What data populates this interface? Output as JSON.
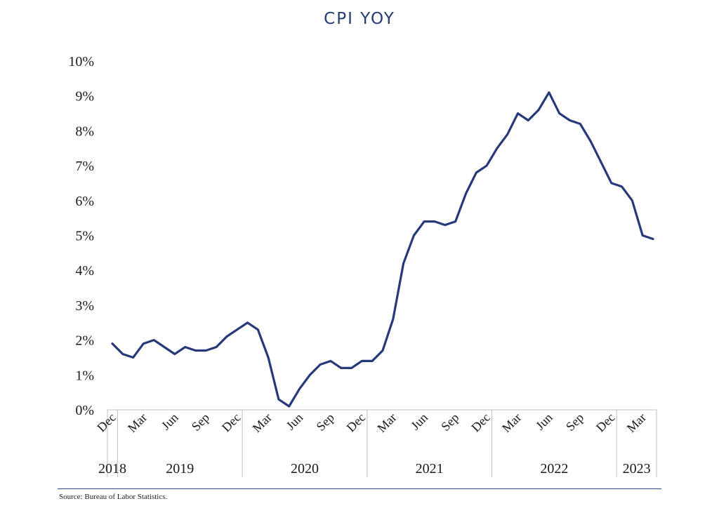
{
  "title": "CPI YOY",
  "source": "Source: Bureau of Labor Statistics.",
  "colors": {
    "line": "#27397a",
    "title": "#233a73",
    "axis": "#bfbfbf",
    "rule": "#2f4a86"
  },
  "chart_data": {
    "type": "line",
    "title": "CPI YOY",
    "xlabel": "",
    "ylabel": "",
    "ylim": [
      0,
      10
    ],
    "yticks": [
      "0%",
      "1%",
      "2%",
      "3%",
      "4%",
      "5%",
      "6%",
      "7%",
      "8%",
      "9%",
      "10%"
    ],
    "grid": false,
    "x": [
      "2018-12",
      "2019-01",
      "2019-02",
      "2019-03",
      "2019-04",
      "2019-05",
      "2019-06",
      "2019-07",
      "2019-08",
      "2019-09",
      "2019-10",
      "2019-11",
      "2019-12",
      "2020-01",
      "2020-02",
      "2020-03",
      "2020-04",
      "2020-05",
      "2020-06",
      "2020-07",
      "2020-08",
      "2020-09",
      "2020-10",
      "2020-11",
      "2020-12",
      "2021-01",
      "2021-02",
      "2021-03",
      "2021-04",
      "2021-05",
      "2021-06",
      "2021-07",
      "2021-08",
      "2021-09",
      "2021-10",
      "2021-11",
      "2021-12",
      "2022-01",
      "2022-02",
      "2022-03",
      "2022-04",
      "2022-05",
      "2022-06",
      "2022-07",
      "2022-08",
      "2022-09",
      "2022-10",
      "2022-11",
      "2022-12",
      "2023-01",
      "2023-02",
      "2023-03",
      "2023-04"
    ],
    "series": [
      {
        "values": [
          1.9,
          1.6,
          1.5,
          1.9,
          2.0,
          1.8,
          1.6,
          1.8,
          1.7,
          1.7,
          1.8,
          2.1,
          2.3,
          2.5,
          2.3,
          1.5,
          0.3,
          0.1,
          0.6,
          1.0,
          1.3,
          1.4,
          1.2,
          1.2,
          1.4,
          1.4,
          1.7,
          2.6,
          4.2,
          5.0,
          5.4,
          5.4,
          5.3,
          5.4,
          6.2,
          6.8,
          7.0,
          7.5,
          7.9,
          8.5,
          8.3,
          8.6,
          9.1,
          8.5,
          8.3,
          8.2,
          7.7,
          7.1,
          6.5,
          6.4,
          6.0,
          5.0,
          4.9
        ]
      }
    ],
    "month_ticks": [
      {
        "label": "Dec",
        "index": 0
      },
      {
        "label": "Mar",
        "index": 3
      },
      {
        "label": "Jun",
        "index": 6
      },
      {
        "label": "Sep",
        "index": 9
      },
      {
        "label": "Dec",
        "index": 12
      },
      {
        "label": "Mar",
        "index": 15
      },
      {
        "label": "Jun",
        "index": 18
      },
      {
        "label": "Sep",
        "index": 21
      },
      {
        "label": "Dec",
        "index": 24
      },
      {
        "label": "Mar",
        "index": 27
      },
      {
        "label": "Jun",
        "index": 30
      },
      {
        "label": "Sep",
        "index": 33
      },
      {
        "label": "Dec",
        "index": 36
      },
      {
        "label": "Mar",
        "index": 39
      },
      {
        "label": "Jun",
        "index": 42
      },
      {
        "label": "Sep",
        "index": 45
      },
      {
        "label": "Dec",
        "index": 48
      },
      {
        "label": "Mar",
        "index": 51
      }
    ],
    "year_groups": [
      {
        "label": "2018",
        "start": 0,
        "end": 0
      },
      {
        "label": "2019",
        "start": 1,
        "end": 12
      },
      {
        "label": "2020",
        "start": 13,
        "end": 24
      },
      {
        "label": "2021",
        "start": 25,
        "end": 36
      },
      {
        "label": "2022",
        "start": 37,
        "end": 48
      },
      {
        "label": "2023",
        "start": 49,
        "end": 52
      }
    ]
  }
}
